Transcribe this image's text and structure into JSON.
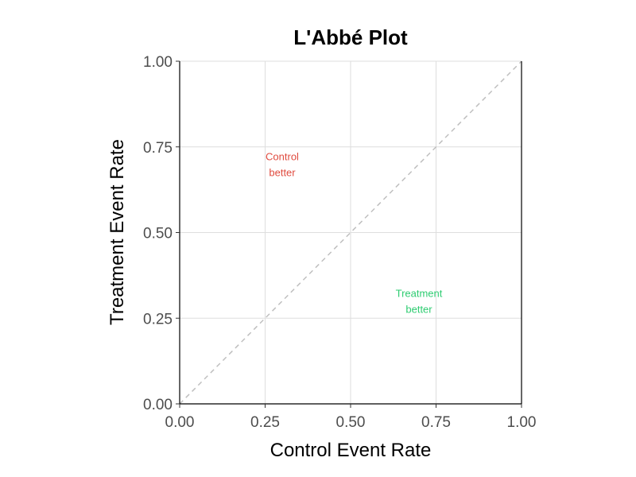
{
  "chart_data": {
    "type": "scatter",
    "title": "L'Abbé Plot",
    "xlabel": "Control Event Rate",
    "ylabel": "Treatment Event Rate",
    "xlim": [
      0,
      1
    ],
    "ylim": [
      0,
      1
    ],
    "x_ticks": [
      0,
      0.25,
      0.5,
      0.75,
      1
    ],
    "y_ticks": [
      0,
      0.25,
      0.5,
      0.75,
      1
    ],
    "x_tick_labels": [
      "0.00",
      "0.25",
      "0.50",
      "0.75",
      "1.00"
    ],
    "y_tick_labels": [
      "0.00",
      "0.25",
      "0.50",
      "0.75",
      "1.00"
    ],
    "grid": true,
    "series": [],
    "reference_line": {
      "kind": "identity",
      "x": [
        0,
        1
      ],
      "y": [
        0,
        1
      ],
      "style": "dashed",
      "color": "#bfbfbf"
    },
    "annotations": [
      {
        "lines": [
          "Control",
          "better"
        ],
        "x": 0.3,
        "y": 0.7,
        "color": "#e04b3f"
      },
      {
        "lines": [
          "Treatment",
          "better"
        ],
        "x": 0.7,
        "y": 0.3,
        "color": "#2ecc71"
      }
    ]
  }
}
